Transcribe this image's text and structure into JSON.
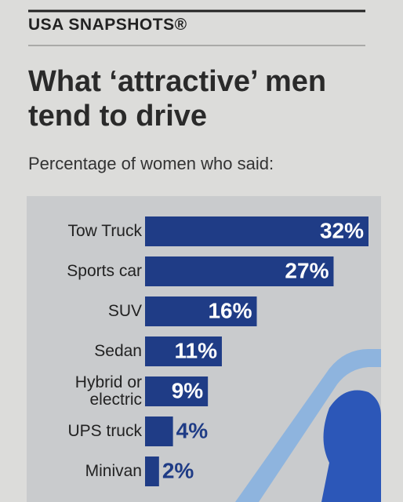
{
  "header": "USA SNAPSHOTS®",
  "chart_data": {
    "type": "bar",
    "orientation": "horizontal",
    "title": "What ‘attractive’ men tend to drive",
    "subtitle": "Percentage of women who said:",
    "categories": [
      "Tow Truck",
      "Sports car",
      "SUV",
      "Sedan",
      "Hybrid or electric",
      "UPS truck",
      "Minivan"
    ],
    "values": [
      32,
      27,
      16,
      11,
      9,
      4,
      2
    ],
    "value_labels": [
      "32%",
      "27%",
      "16%",
      "11%",
      "9%",
      "4%",
      "2%"
    ],
    "color": "#1f3c86"
  }
}
